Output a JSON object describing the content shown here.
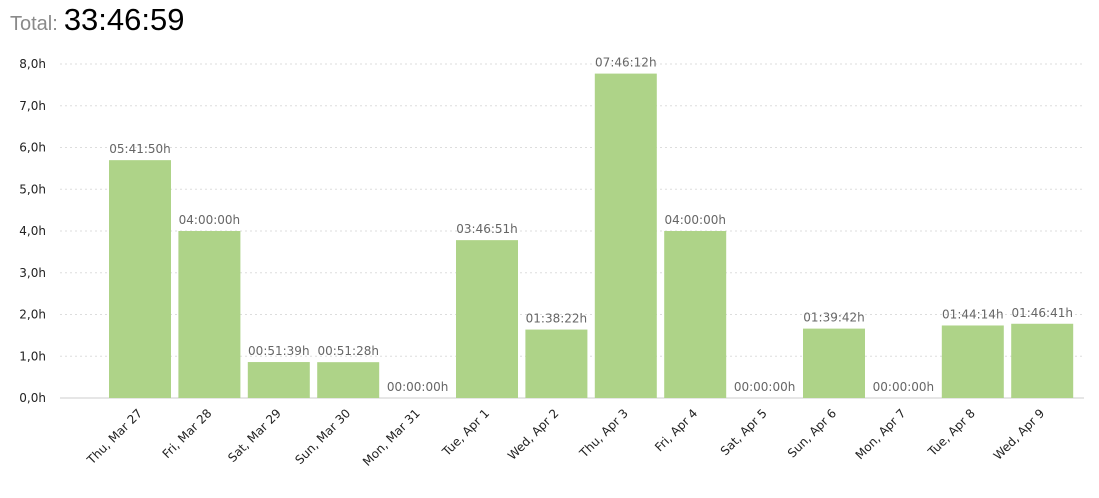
{
  "total": {
    "label": "Total:",
    "value": "33:46:59"
  },
  "colors": {
    "bar": "#aed388",
    "grid": "#dddddd",
    "axis": "#cccccc"
  },
  "chart_data": {
    "type": "bar",
    "categories": [
      "Thu, Mar 27",
      "Fri, Mar 28",
      "Sat, Mar 29",
      "Sun, Mar 30",
      "Mon, Mar 31",
      "Tue, Apr 1",
      "Wed, Apr 2",
      "Thu, Apr 3",
      "Fri, Apr 4",
      "Sat, Apr 5",
      "Sun, Apr 6",
      "Mon, Apr 7",
      "Tue, Apr 8",
      "Wed, Apr 9"
    ],
    "values": [
      5.697,
      4.0,
      0.861,
      0.858,
      0.0,
      3.781,
      1.639,
      7.77,
      4.0,
      0.0,
      1.662,
      0.0,
      1.737,
      1.778
    ],
    "data_labels": [
      "05:41:50h",
      "04:00:00h",
      "00:51:39h",
      "00:51:28h",
      "00:00:00h",
      "03:46:51h",
      "01:38:22h",
      "07:46:12h",
      "04:00:00h",
      "00:00:00h",
      "01:39:42h",
      "00:00:00h",
      "01:44:14h",
      "01:46:41h"
    ],
    "yticks": [
      0,
      1,
      2,
      3,
      4,
      5,
      6,
      7,
      8
    ],
    "ytick_labels": [
      "0,0h",
      "1,0h",
      "2,0h",
      "3,0h",
      "4,0h",
      "5,0h",
      "6,0h",
      "7,0h",
      "8,0h"
    ],
    "ylim": [
      0,
      8
    ],
    "grid": true
  }
}
